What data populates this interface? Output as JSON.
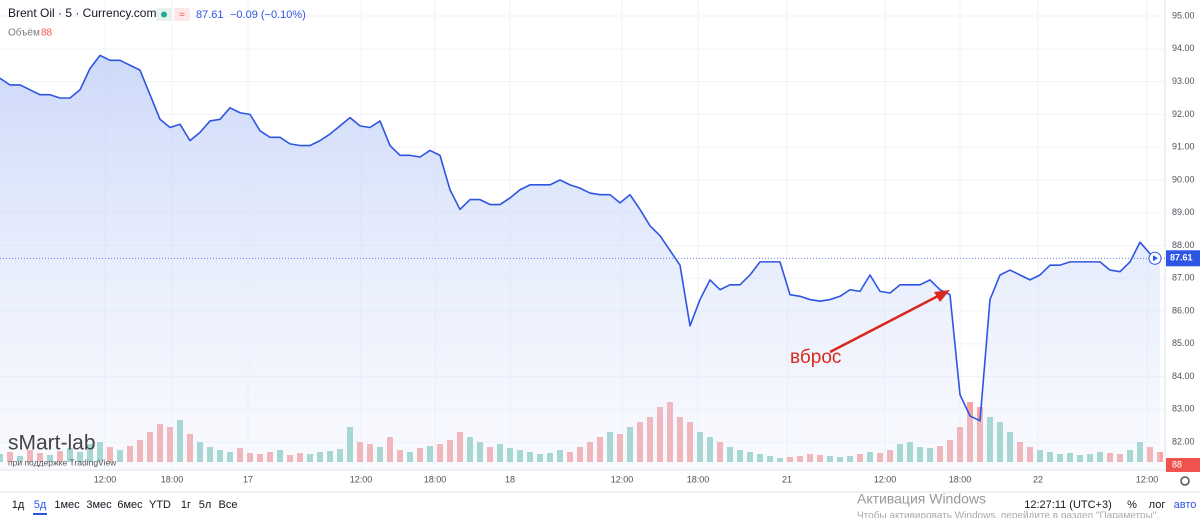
{
  "header": {
    "title": "Brent Oil · 5 · Currency.com",
    "price": "87.61",
    "change": "−0.09 (−0.10%)",
    "volume_label": "Объём",
    "volume_value": "88"
  },
  "chart_data": {
    "type": "line",
    "x": [
      0,
      1,
      2,
      3,
      4,
      5,
      6,
      7,
      8,
      9,
      10,
      11,
      12,
      13,
      14,
      15,
      16,
      17,
      18,
      19,
      20,
      21,
      22,
      23,
      24,
      25,
      26,
      27,
      28,
      29,
      30,
      31,
      32,
      33,
      34,
      35,
      36,
      37,
      38,
      39,
      40,
      41,
      42,
      43,
      44,
      45,
      46,
      47,
      48,
      49,
      50,
      51,
      52,
      53,
      54,
      55,
      56,
      57,
      58,
      59,
      60,
      61,
      62,
      63,
      64,
      65,
      66,
      67,
      68,
      69,
      70,
      71,
      72,
      73,
      74,
      75,
      76,
      77,
      78,
      79,
      80,
      81,
      82,
      83,
      84,
      85,
      86,
      87,
      88,
      89,
      90,
      91,
      92,
      93,
      94,
      95,
      96,
      97,
      98,
      99,
      100,
      101,
      102,
      103,
      104,
      105,
      106,
      107,
      108,
      109,
      110,
      111,
      112,
      113,
      114,
      115,
      116
    ],
    "series": [
      {
        "name": "Brent Oil",
        "color": "#2f55e4",
        "values": [
          93.1,
          92.9,
          92.9,
          92.75,
          92.6,
          92.6,
          92.5,
          92.5,
          92.75,
          93.4,
          93.8,
          93.65,
          93.65,
          93.5,
          93.35,
          92.6,
          91.85,
          91.6,
          91.7,
          91.2,
          91.45,
          91.8,
          91.85,
          92.2,
          92.05,
          92.0,
          91.5,
          91.3,
          91.3,
          91.1,
          91.05,
          91.05,
          91.2,
          91.4,
          91.65,
          91.9,
          91.65,
          91.6,
          91.8,
          91.05,
          90.75,
          90.75,
          90.7,
          90.9,
          90.75,
          89.7,
          89.1,
          89.4,
          89.4,
          89.25,
          89.25,
          89.45,
          89.7,
          89.85,
          89.85,
          89.85,
          90.0,
          89.85,
          89.75,
          89.6,
          89.55,
          89.55,
          89.3,
          89.55,
          89.1,
          88.6,
          88.3,
          87.85,
          87.4,
          85.55,
          86.35,
          86.95,
          86.65,
          86.8,
          86.8,
          87.1,
          87.5,
          87.5,
          87.5,
          86.5,
          86.45,
          86.35,
          86.3,
          86.35,
          86.45,
          86.65,
          86.6,
          87.1,
          86.6,
          86.55,
          86.8,
          86.8,
          86.8,
          86.95,
          86.65,
          86.5,
          83.45,
          82.8,
          82.65,
          86.35,
          87.1,
          87.25,
          87.1,
          86.95,
          87.1,
          87.4,
          87.4,
          87.5,
          87.5,
          87.5,
          87.5,
          87.25,
          87.2,
          87.5,
          88.1,
          87.75,
          87.61
        ]
      }
    ],
    "volume": {
      "values": [
        8,
        10,
        6,
        12,
        9,
        7,
        11,
        14,
        10,
        18,
        20,
        15,
        12,
        16,
        22,
        30,
        38,
        35,
        42,
        28,
        20,
        15,
        12,
        10,
        14,
        9,
        8,
        10,
        12,
        7,
        9,
        8,
        10,
        11,
        13,
        35,
        20,
        18,
        15,
        25,
        12,
        10,
        14,
        16,
        18,
        22,
        30,
        25,
        20,
        15,
        18,
        14,
        12,
        10,
        8,
        9,
        12,
        10,
        15,
        20,
        25,
        30,
        28,
        35,
        40,
        45,
        55,
        60,
        45,
        40,
        30,
        25,
        20,
        15,
        12,
        10,
        8,
        6,
        4,
        5,
        6,
        8,
        7,
        6,
        5,
        6,
        8,
        10,
        9,
        12,
        18,
        20,
        15,
        14,
        16,
        22,
        35,
        60,
        55,
        45,
        40,
        30,
        20,
        15,
        12,
        10,
        8,
        9,
        7,
        8,
        10,
        9,
        8,
        12,
        20,
        15,
        10
      ],
      "ylim": [
        0,
        100
      ],
      "up_color": "#8fd0c4",
      "down_color": "#f5a3a3",
      "label": "88"
    },
    "xlim": [
      0,
      116
    ],
    "xticks": [
      {
        "value": 10.5,
        "label": "12:00"
      },
      {
        "value": 17.2,
        "label": "18:00"
      },
      {
        "value": 24.8,
        "label": "17"
      },
      {
        "value": 36.1,
        "label": "12:00"
      },
      {
        "value": 43.5,
        "label": "18:00"
      },
      {
        "value": 51,
        "label": "18"
      },
      {
        "value": 62.2,
        "label": "12:00"
      },
      {
        "value": 69.8,
        "label": "18:00"
      },
      {
        "value": 78.7,
        "label": "21"
      },
      {
        "value": 88.5,
        "label": "12:00"
      },
      {
        "value": 96,
        "label": "18:00"
      },
      {
        "value": 103.8,
        "label": "22"
      },
      {
        "value": 114.7,
        "label": "12:00"
      }
    ],
    "ylim": [
      81.15,
      95.49
    ],
    "yticks": [
      {
        "value": 95,
        "label": "95.00"
      },
      {
        "value": 94,
        "label": "94.00"
      },
      {
        "value": 93,
        "label": "93.00"
      },
      {
        "value": 92,
        "label": "92.00"
      },
      {
        "value": 91,
        "label": "91.00"
      },
      {
        "value": 90,
        "label": "90.00"
      },
      {
        "value": 89,
        "label": "89.00"
      },
      {
        "value": 88,
        "label": "88.00"
      },
      {
        "value": 87,
        "label": "87.00"
      },
      {
        "value": 86,
        "label": "86.00"
      },
      {
        "value": 85,
        "label": "85.00"
      },
      {
        "value": 84,
        "label": "84.00"
      },
      {
        "value": 83,
        "label": "83.00"
      },
      {
        "value": 82,
        "label": "82.00"
      }
    ],
    "last": {
      "value": 87.61,
      "label": "87.61"
    },
    "annotation": "вброс",
    "grid": true
  },
  "watermark": {
    "brand": "sMart-lab",
    "powered": "при поддержке TradingView"
  },
  "toolbar": {
    "ranges": [
      "1д",
      "5д",
      "1мес",
      "3мес",
      "6мес",
      "YTD",
      "1г",
      "5л",
      "Все"
    ],
    "clock": "12:27:11 (UTC+3)",
    "percent": "%",
    "log": "лог",
    "auto": "авто"
  },
  "windows": {
    "title": "Активация Windows",
    "text": "Чтобы активировать Windows, перейдите в раздел \"Параметры\"."
  }
}
